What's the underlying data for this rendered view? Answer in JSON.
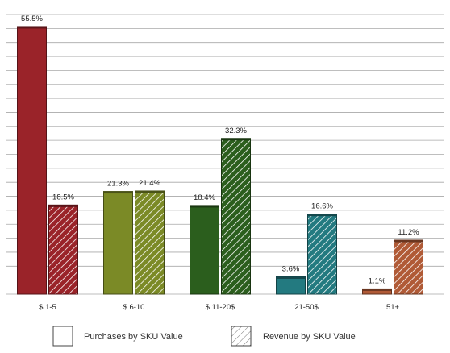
{
  "chart_data": {
    "type": "bar",
    "categories": [
      "$ 1-5",
      "$ 6-10",
      "$ 11-20$",
      "21-50$",
      "51+"
    ],
    "series": [
      {
        "name": "Purchases by SKU Value",
        "values": [
          55.5,
          21.3,
          18.4,
          3.6,
          1.1
        ],
        "labels": [
          "55.5%",
          "21.3%",
          "18.4%",
          "3.6%",
          "1.1%"
        ],
        "pattern": "solid"
      },
      {
        "name": "Revenue by SKU Value",
        "values": [
          18.5,
          21.4,
          32.3,
          16.6,
          11.2
        ],
        "labels": [
          "18.5%",
          "21.4%",
          "32.3%",
          "16.6%",
          "11.2%"
        ],
        "pattern": "hatched"
      }
    ],
    "category_colors": [
      "#9a2329",
      "#7b8a26",
      "#2b5e1d",
      "#237a80",
      "#b05a36"
    ],
    "ylim": [
      0,
      58
    ],
    "grid": true,
    "legend_position": "bottom"
  }
}
